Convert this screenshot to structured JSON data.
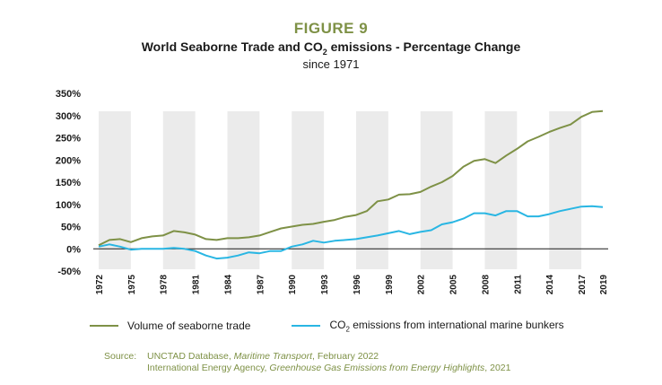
{
  "figure_label": "FIGURE 9",
  "title_pre": "World Seaborne Trade and CO",
  "title_sub": "2",
  "title_post": " emissions - Percentage Change",
  "subtitle": "since 1971",
  "colors": {
    "trade": "#7e9146",
    "co2": "#29b6e3",
    "band": "#ebebeb",
    "accent": "#7e9146"
  },
  "legend": {
    "trade": "Volume of seaborne trade",
    "co2_pre": "CO",
    "co2_sub": "2",
    "co2_post": " emissions from international marine bunkers"
  },
  "source": {
    "label": "Source:",
    "line1_pre": "UNCTAD Database, ",
    "line1_italic": "Maritime Transport",
    "line1_post": ", February 2022",
    "line2_pre": "International Energy Agency, ",
    "line2_italic": "Greenhouse Gas Emissions from Energy Highlights",
    "line2_post": ", 2021"
  },
  "chart_data": {
    "type": "line",
    "x": [
      1972,
      1973,
      1974,
      1975,
      1976,
      1977,
      1978,
      1979,
      1980,
      1981,
      1982,
      1983,
      1984,
      1985,
      1986,
      1987,
      1988,
      1989,
      1990,
      1991,
      1992,
      1993,
      1994,
      1995,
      1996,
      1997,
      1998,
      1999,
      2000,
      2001,
      2002,
      2003,
      2004,
      2005,
      2006,
      2007,
      2008,
      2009,
      2010,
      2011,
      2012,
      2013,
      2014,
      2015,
      2016,
      2017,
      2018,
      2019
    ],
    "x_tick_labels": [
      "1972",
      "1975",
      "1978",
      "1981",
      "1984",
      "1987",
      "1990",
      "1993",
      "1996",
      "1999",
      "2002",
      "2005",
      "2008",
      "2011",
      "2014",
      "2017",
      "2019"
    ],
    "y_ticks": [
      350,
      300,
      250,
      200,
      150,
      100,
      50,
      0,
      -50
    ],
    "y_tick_labels": [
      "350%",
      "300%",
      "250%",
      "200%",
      "150%",
      "100%",
      "50%",
      "0%",
      "-50%"
    ],
    "ylim": [
      -50,
      350
    ],
    "grid": false,
    "legend_position": "bottom",
    "series": [
      {
        "name": "Volume of seaborne trade",
        "values": [
          8,
          20,
          22,
          15,
          24,
          28,
          30,
          40,
          37,
          32,
          22,
          20,
          24,
          24,
          26,
          30,
          38,
          46,
          50,
          54,
          56,
          61,
          65,
          72,
          76,
          85,
          107,
          111,
          122,
          123,
          128,
          140,
          150,
          164,
          185,
          198,
          202,
          193,
          210,
          225,
          242,
          252,
          263,
          272,
          280,
          297,
          308,
          310
        ]
      },
      {
        "name": "CO2 emissions from international marine bunkers",
        "values": [
          5,
          10,
          5,
          -2,
          0,
          0,
          0,
          2,
          0,
          -5,
          -15,
          -22,
          -20,
          -15,
          -8,
          -10,
          -5,
          -5,
          5,
          10,
          18,
          14,
          18,
          20,
          22,
          26,
          30,
          35,
          40,
          33,
          38,
          42,
          55,
          60,
          68,
          80,
          80,
          75,
          85,
          85,
          73,
          73,
          78,
          85,
          90,
          95,
          96,
          94
        ]
      }
    ]
  }
}
